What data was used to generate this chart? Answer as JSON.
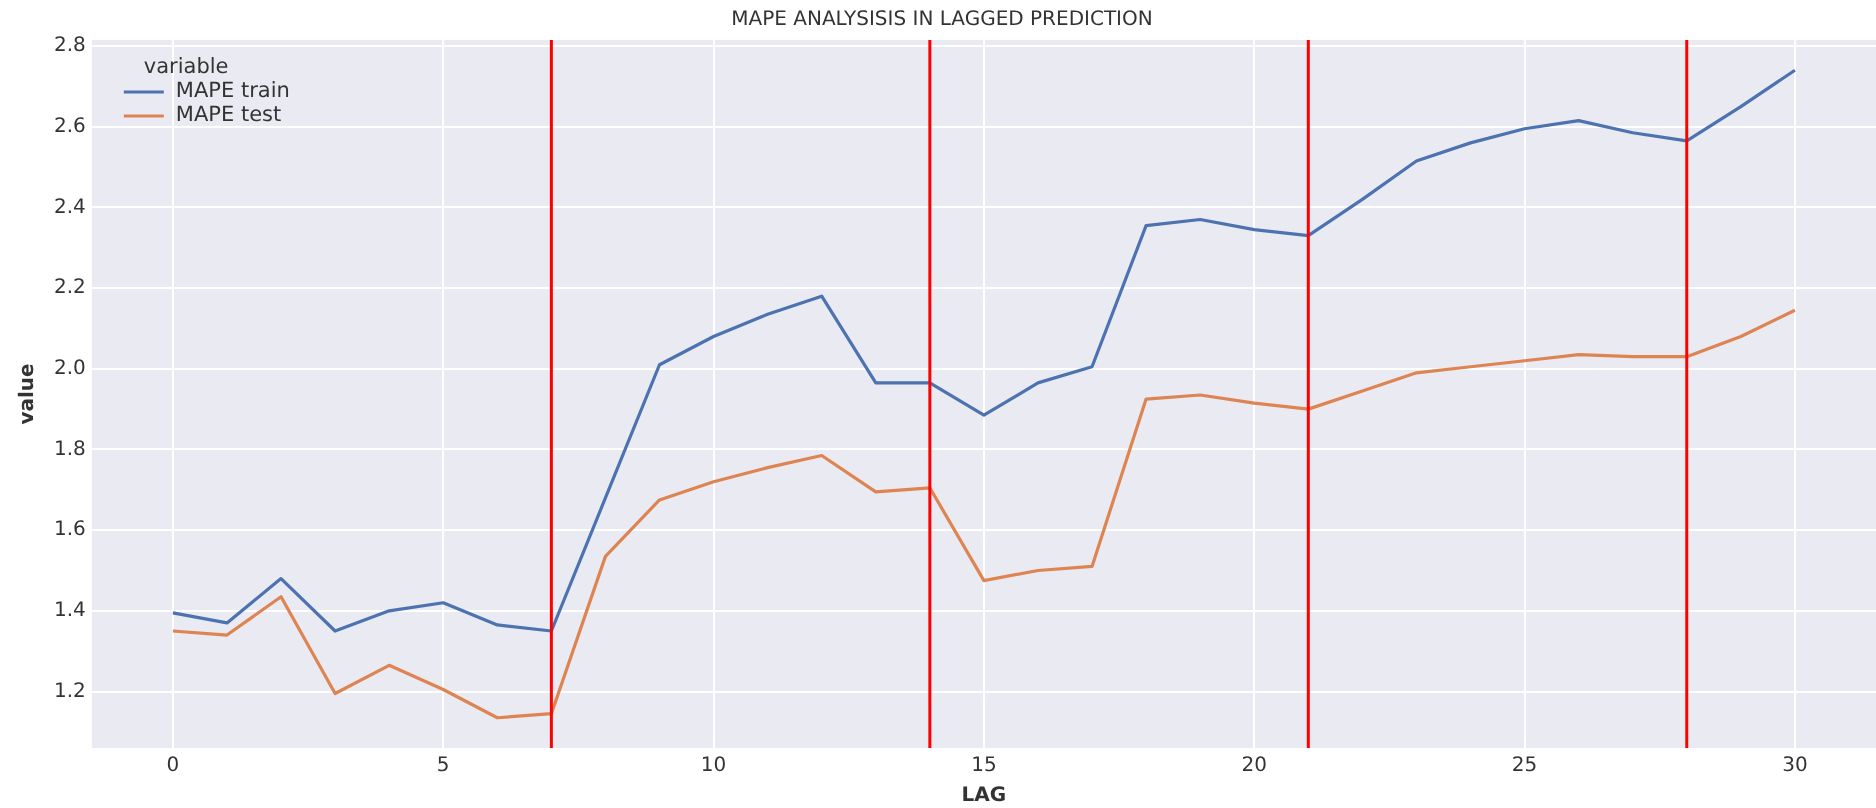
{
  "chart_data": {
    "type": "line",
    "title": "MAPE ANALYSISIS IN LAGGED PREDICTION",
    "xlabel": "LAG",
    "ylabel": "value",
    "legend_title": "variable",
    "x": [
      0,
      1,
      2,
      3,
      4,
      5,
      6,
      7,
      8,
      9,
      10,
      11,
      12,
      13,
      14,
      15,
      16,
      17,
      18,
      19,
      20,
      21,
      22,
      23,
      24,
      25,
      26,
      27,
      28,
      29,
      30
    ],
    "series": [
      {
        "name": "MAPE train",
        "color": "#4c72b0",
        "values": [
          1.395,
          1.37,
          1.48,
          1.35,
          1.4,
          1.42,
          1.365,
          1.35,
          1.68,
          2.01,
          2.08,
          2.135,
          2.18,
          1.965,
          1.965,
          1.885,
          1.965,
          2.005,
          2.355,
          2.37,
          2.345,
          2.33,
          2.42,
          2.515,
          2.56,
          2.595,
          2.615,
          2.585,
          2.565,
          2.65,
          2.74
        ]
      },
      {
        "name": "MAPE test",
        "color": "#dd8452",
        "values": [
          1.35,
          1.34,
          1.435,
          1.195,
          1.265,
          1.205,
          1.135,
          1.145,
          1.535,
          1.675,
          1.72,
          1.755,
          1.785,
          1.695,
          1.705,
          1.475,
          1.5,
          1.51,
          1.925,
          1.935,
          1.915,
          1.9,
          1.945,
          1.99,
          2.005,
          2.02,
          2.035,
          2.03,
          2.03,
          2.08,
          2.145
        ]
      }
    ],
    "xlim": [
      -1.5,
      31.5
    ],
    "xticks": [
      0,
      5,
      10,
      15,
      20,
      25,
      30
    ],
    "ylim": [
      1.06,
      2.815
    ],
    "yticks": [
      1.2,
      1.4,
      1.6,
      1.8,
      {
        "value": 2.0,
        "label": "2.0"
      },
      2.2,
      2.4,
      2.6,
      2.8
    ],
    "ref_lines": [
      {
        "axis": "x",
        "value": 7,
        "color": "#ff0000"
      },
      {
        "axis": "x",
        "value": 14,
        "color": "#ff0000"
      },
      {
        "axis": "x",
        "value": 21,
        "color": "#ff0000"
      },
      {
        "axis": "x",
        "value": 28,
        "color": "#ff0000"
      }
    ],
    "grid": true,
    "legend": "top left",
    "marker": "none",
    "line_style": "solid"
  }
}
